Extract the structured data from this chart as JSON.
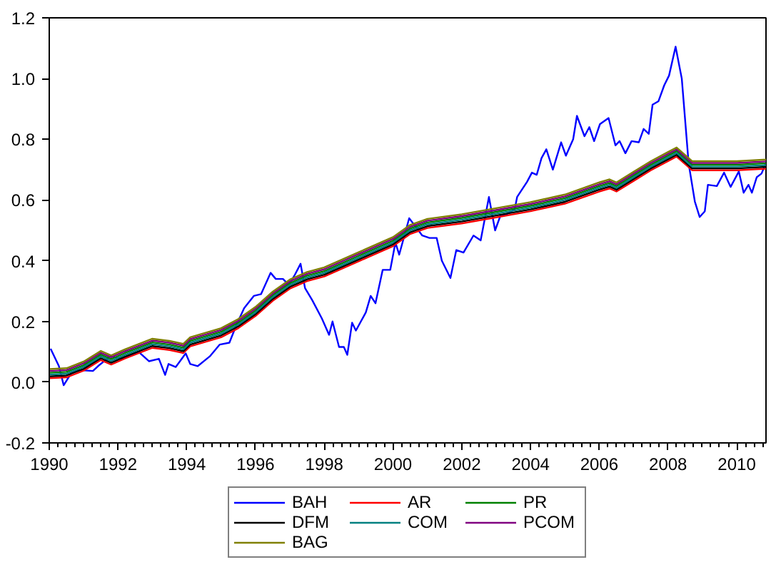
{
  "chart_data": {
    "type": "line",
    "legend": "bottom",
    "grid": false,
    "line_style": "solid",
    "xlim": [
      1990,
      2010.85
    ],
    "ylim": [
      -0.2,
      1.2
    ],
    "xticks": [
      1990,
      1992,
      1994,
      1996,
      1998,
      2000,
      2002,
      2004,
      2006,
      2008,
      2010
    ],
    "yticks": [
      {
        "value": -0.2,
        "label": "-0.2"
      },
      {
        "value": 0,
        "label": "0.0"
      },
      {
        "value": 0.2,
        "label": "0.2"
      },
      {
        "value": 0.4,
        "label": "0.4"
      },
      {
        "value": 0.6,
        "label": "0.6"
      },
      {
        "value": 0.8,
        "label": "0.8"
      },
      {
        "value": 1.0,
        "label": "1.0"
      },
      {
        "value": 1.2,
        "label": "1.2"
      }
    ],
    "x": [
      1990,
      1990.5,
      1991,
      1991.5,
      1991.8,
      1992.2,
      1993,
      1993.5,
      1993.9,
      1994.1,
      1995,
      1995.5,
      1996,
      1996.5,
      1997,
      1997.5,
      1998,
      1999,
      2000,
      2000.5,
      2001,
      2002,
      2003,
      2004,
      2005,
      2006,
      2006.3,
      2006.5,
      2007,
      2007.5,
      2008,
      2008.25,
      2008.7,
      2009,
      2010,
      2010.85
    ],
    "series": [
      {
        "name": "BAH",
        "color": "#0000ff",
        "x": [
          1990.04,
          1990.28,
          1990.42,
          1990.64,
          1990.85,
          1991.27,
          1991.42,
          1991.77,
          1992.12,
          1992.6,
          1992.9,
          1993.19,
          1993.37,
          1993.47,
          1993.68,
          1993.97,
          1994.1,
          1994.32,
          1994.67,
          1994.96,
          1995.24,
          1995.45,
          1995.67,
          1995.95,
          1996.16,
          1996.44,
          1996.59,
          1996.8,
          1996.97,
          1997.15,
          1997.31,
          1997.44,
          1997.65,
          1997.93,
          1998.14,
          1998.24,
          1998.43,
          1998.57,
          1998.67,
          1998.81,
          1998.92,
          1999.21,
          1999.35,
          1999.49,
          1999.7,
          1999.92,
          2000.07,
          2000.18,
          2000.47,
          2000.64,
          2000.85,
          2001.06,
          2001.27,
          2001.42,
          2001.67,
          2001.84,
          2002.05,
          2002.34,
          2002.55,
          2002.79,
          2002.97,
          2003.12,
          2003.33,
          2003.54,
          2003.61,
          2003.9,
          2004.04,
          2004.18,
          2004.32,
          2004.46,
          2004.65,
          2004.89,
          2005.03,
          2005.24,
          2005.35,
          2005.57,
          2005.71,
          2005.85,
          2006.02,
          2006.27,
          2006.47,
          2006.59,
          2006.76,
          2006.94,
          2007.15,
          2007.29,
          2007.44,
          2007.55,
          2007.72,
          2007.89,
          2008.03,
          2008.22,
          2008.4,
          2008.6,
          2008.78,
          2008.92,
          2009.07,
          2009.16,
          2009.42,
          2009.63,
          2009.82,
          2010.06,
          2010.2,
          2010.34,
          2010.44,
          2010.58,
          2010.72,
          2010.84
        ],
        "values": [
          0.11,
          0.053,
          -0.01,
          0.03,
          0.04,
          0.037,
          0.053,
          0.085,
          0.077,
          0.1,
          0.069,
          0.077,
          0.024,
          0.06,
          0.05,
          0.095,
          0.06,
          0.053,
          0.085,
          0.124,
          0.13,
          0.19,
          0.244,
          0.284,
          0.29,
          0.36,
          0.34,
          0.34,
          0.32,
          0.355,
          0.39,
          0.31,
          0.27,
          0.21,
          0.156,
          0.2,
          0.116,
          0.116,
          0.09,
          0.196,
          0.17,
          0.23,
          0.284,
          0.26,
          0.37,
          0.37,
          0.46,
          0.42,
          0.54,
          0.515,
          0.483,
          0.475,
          0.475,
          0.4,
          0.343,
          0.435,
          0.427,
          0.483,
          0.467,
          0.61,
          0.5,
          0.547,
          0.555,
          0.57,
          0.61,
          0.66,
          0.69,
          0.683,
          0.738,
          0.767,
          0.7,
          0.79,
          0.746,
          0.8,
          0.877,
          0.81,
          0.84,
          0.794,
          0.85,
          0.87,
          0.78,
          0.794,
          0.754,
          0.794,
          0.79,
          0.834,
          0.818,
          0.914,
          0.925,
          0.978,
          1.01,
          1.105,
          1.0,
          0.72,
          0.595,
          0.544,
          0.563,
          0.65,
          0.646,
          0.69,
          0.643,
          0.694,
          0.624,
          0.65,
          0.624,
          0.675,
          0.687,
          0.72
        ]
      },
      {
        "name": "AR",
        "color": "#ff0000",
        "values": [
          0.013,
          0.016,
          0.038,
          0.073,
          0.058,
          0.078,
          0.113,
          0.106,
          0.096,
          0.118,
          0.148,
          0.178,
          0.218,
          0.268,
          0.308,
          0.333,
          0.348,
          0.398,
          0.448,
          0.488,
          0.508,
          0.523,
          0.543,
          0.563,
          0.588,
          0.628,
          0.638,
          0.628,
          0.663,
          0.698,
          0.728,
          0.743,
          0.698,
          0.698,
          0.698,
          0.703
        ]
      },
      {
        "name": "PR",
        "color": "#008000",
        "values": [
          0.031,
          0.034,
          0.056,
          0.091,
          0.076,
          0.096,
          0.131,
          0.124,
          0.114,
          0.136,
          0.166,
          0.196,
          0.236,
          0.286,
          0.326,
          0.351,
          0.366,
          0.416,
          0.466,
          0.506,
          0.526,
          0.541,
          0.561,
          0.581,
          0.606,
          0.646,
          0.656,
          0.646,
          0.681,
          0.716,
          0.746,
          0.761,
          0.716,
          0.716,
          0.716,
          0.721
        ]
      },
      {
        "name": "DFM",
        "color": "#000000",
        "values": [
          0.019,
          0.022,
          0.044,
          0.079,
          0.064,
          0.084,
          0.119,
          0.112,
          0.102,
          0.124,
          0.154,
          0.184,
          0.224,
          0.274,
          0.314,
          0.339,
          0.354,
          0.404,
          0.454,
          0.494,
          0.514,
          0.529,
          0.549,
          0.569,
          0.594,
          0.634,
          0.644,
          0.634,
          0.669,
          0.704,
          0.734,
          0.749,
          0.704,
          0.704,
          0.704,
          0.709
        ]
      },
      {
        "name": "COM",
        "color": "#008080",
        "values": [
          0.025,
          0.028,
          0.05,
          0.085,
          0.07,
          0.09,
          0.125,
          0.118,
          0.108,
          0.13,
          0.16,
          0.19,
          0.23,
          0.28,
          0.32,
          0.345,
          0.36,
          0.41,
          0.46,
          0.5,
          0.52,
          0.535,
          0.555,
          0.575,
          0.6,
          0.64,
          0.65,
          0.64,
          0.675,
          0.71,
          0.74,
          0.755,
          0.71,
          0.71,
          0.71,
          0.715
        ]
      },
      {
        "name": "PCOM",
        "color": "#800080",
        "values": [
          0.037,
          0.04,
          0.062,
          0.097,
          0.082,
          0.102,
          0.137,
          0.13,
          0.12,
          0.142,
          0.172,
          0.202,
          0.242,
          0.292,
          0.332,
          0.357,
          0.372,
          0.422,
          0.472,
          0.512,
          0.532,
          0.547,
          0.567,
          0.587,
          0.612,
          0.652,
          0.662,
          0.652,
          0.687,
          0.722,
          0.752,
          0.767,
          0.722,
          0.722,
          0.722,
          0.727
        ]
      },
      {
        "name": "BAG",
        "color": "#808000",
        "values": [
          0.043,
          0.046,
          0.068,
          0.103,
          0.088,
          0.108,
          0.143,
          0.136,
          0.126,
          0.148,
          0.178,
          0.208,
          0.248,
          0.298,
          0.338,
          0.363,
          0.378,
          0.428,
          0.478,
          0.518,
          0.538,
          0.553,
          0.573,
          0.593,
          0.618,
          0.658,
          0.668,
          0.658,
          0.693,
          0.728,
          0.758,
          0.773,
          0.728,
          0.728,
          0.728,
          0.733
        ]
      }
    ]
  }
}
